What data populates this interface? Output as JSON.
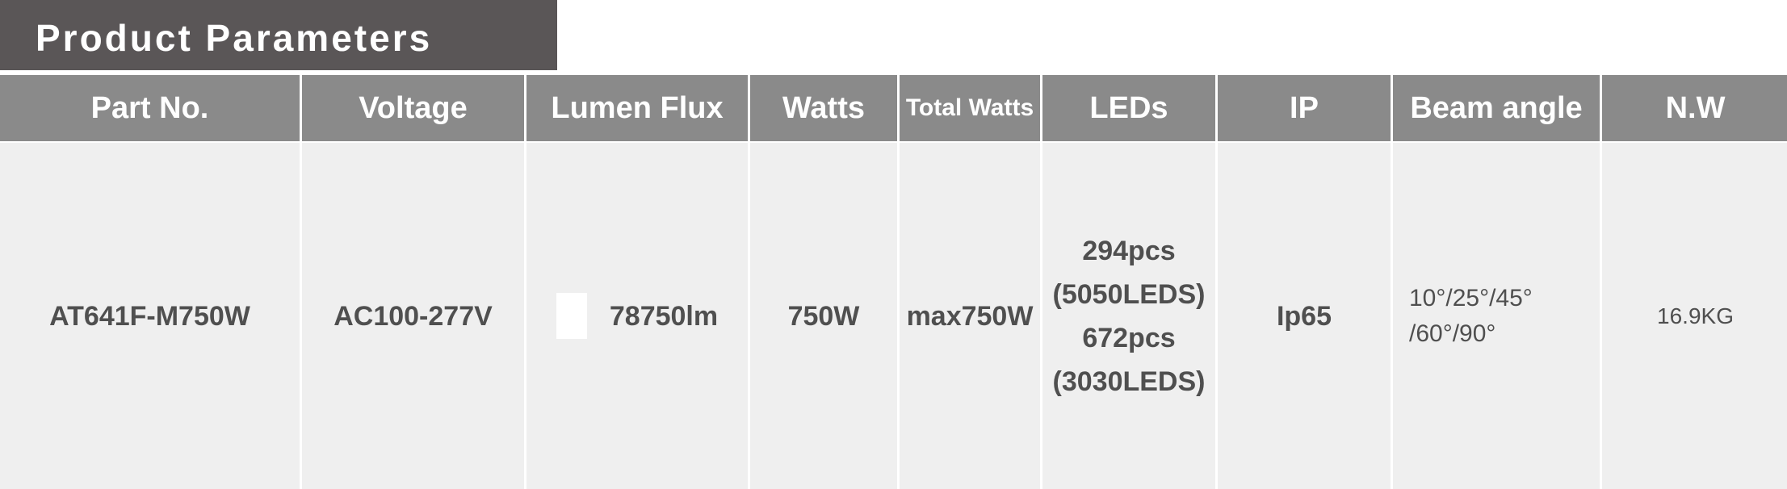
{
  "title": "Product Parameters",
  "headers": [
    "Part No.",
    "Voltage",
    "Lumen Flux",
    "Watts",
    "Total Watts",
    "LEDs",
    "IP",
    "Beam angle",
    "N.W"
  ],
  "row": {
    "part_no": "AT641F-M750W",
    "voltage": "AC100-277V",
    "lumen_flux": "78750lm",
    "watts": "750W",
    "total_watts": "max750W",
    "leds": [
      "294pcs",
      "(5050LEDS)",
      "672pcs",
      "(3030LEDS)"
    ],
    "ip": "Ip65",
    "beam_angle": [
      "10°/25°/45°",
      "/60°/90°"
    ],
    "nw": "16.9KG"
  }
}
